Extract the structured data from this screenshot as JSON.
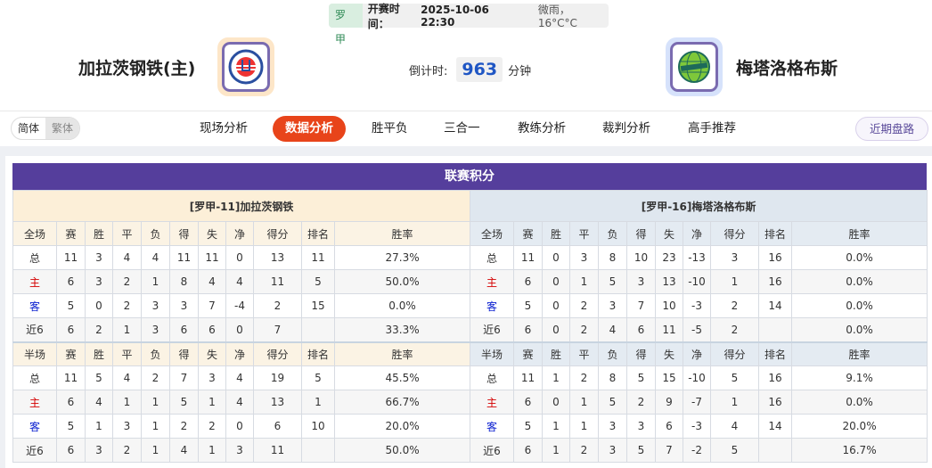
{
  "header": {
    "league": "罗甲",
    "kickoff_label": "开赛时间：",
    "kickoff": "2025-10-06 22:30",
    "weather": "微雨，16°C°C",
    "home_team": "加拉茨钢铁(主)",
    "away_team": "梅塔洛格布斯",
    "countdown_label": "倒计时:",
    "countdown_value": "963",
    "countdown_unit": "分钟"
  },
  "nav": {
    "lang": [
      "简体",
      "繁体"
    ],
    "tabs": [
      "现场分析",
      "数据分析",
      "胜平负",
      "三合一",
      "教练分析",
      "裁判分析",
      "高手推荐"
    ],
    "active_tab": "数据分析",
    "recent_button": "近期盘路"
  },
  "standings": {
    "title": "联赛积分",
    "columns_full": [
      "全场",
      "赛",
      "胜",
      "平",
      "负",
      "得",
      "失",
      "净",
      "得分",
      "排名",
      "胜率"
    ],
    "columns_half": [
      "半场",
      "赛",
      "胜",
      "平",
      "负",
      "得",
      "失",
      "净",
      "得分",
      "排名",
      "胜率"
    ],
    "home": {
      "caption": "[罗甲-11]加拉茨钢铁",
      "full": [
        [
          "总",
          "11",
          "3",
          "4",
          "4",
          "11",
          "11",
          "0",
          "13",
          "11",
          "27.3%"
        ],
        [
          "主",
          "6",
          "3",
          "2",
          "1",
          "8",
          "4",
          "4",
          "11",
          "5",
          "50.0%"
        ],
        [
          "客",
          "5",
          "0",
          "2",
          "3",
          "3",
          "7",
          "-4",
          "2",
          "15",
          "0.0%"
        ],
        [
          "近6",
          "6",
          "2",
          "1",
          "3",
          "6",
          "6",
          "0",
          "7",
          "",
          "33.3%"
        ]
      ],
      "half": [
        [
          "总",
          "11",
          "5",
          "4",
          "2",
          "7",
          "3",
          "4",
          "19",
          "5",
          "45.5%"
        ],
        [
          "主",
          "6",
          "4",
          "1",
          "1",
          "5",
          "1",
          "4",
          "13",
          "1",
          "66.7%"
        ],
        [
          "客",
          "5",
          "1",
          "3",
          "1",
          "2",
          "2",
          "0",
          "6",
          "10",
          "20.0%"
        ],
        [
          "近6",
          "6",
          "3",
          "2",
          "1",
          "4",
          "1",
          "3",
          "11",
          "",
          "50.0%"
        ]
      ]
    },
    "away": {
      "caption": "[罗甲-16]梅塔洛格布斯",
      "full": [
        [
          "总",
          "11",
          "0",
          "3",
          "8",
          "10",
          "23",
          "-13",
          "3",
          "16",
          "0.0%"
        ],
        [
          "主",
          "6",
          "0",
          "1",
          "5",
          "3",
          "13",
          "-10",
          "1",
          "16",
          "0.0%"
        ],
        [
          "客",
          "5",
          "0",
          "2",
          "3",
          "7",
          "10",
          "-3",
          "2",
          "14",
          "0.0%"
        ],
        [
          "近6",
          "6",
          "0",
          "2",
          "4",
          "6",
          "11",
          "-5",
          "2",
          "",
          "0.0%"
        ]
      ],
      "half": [
        [
          "总",
          "11",
          "1",
          "2",
          "8",
          "5",
          "15",
          "-10",
          "5",
          "16",
          "9.1%"
        ],
        [
          "主",
          "6",
          "0",
          "1",
          "5",
          "2",
          "9",
          "-7",
          "1",
          "16",
          "0.0%"
        ],
        [
          "客",
          "5",
          "1",
          "1",
          "3",
          "3",
          "6",
          "-3",
          "4",
          "14",
          "20.0%"
        ],
        [
          "近6",
          "6",
          "1",
          "2",
          "3",
          "5",
          "7",
          "-2",
          "5",
          "",
          "16.7%"
        ]
      ]
    }
  }
}
